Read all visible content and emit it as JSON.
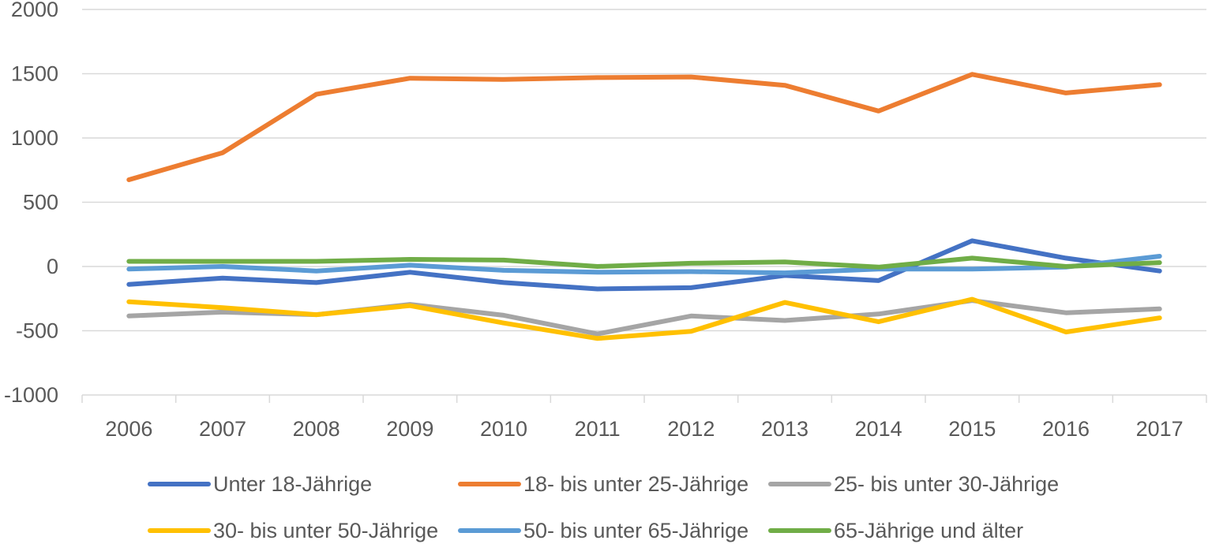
{
  "chart_data": {
    "type": "line",
    "title": "",
    "xlabel": "",
    "ylabel": "",
    "x": [
      "2006",
      "2007",
      "2008",
      "2009",
      "2010",
      "2011",
      "2012",
      "2013",
      "2014",
      "2015",
      "2016",
      "2017"
    ],
    "ylim": [
      -1000,
      2000
    ],
    "yticks": [
      "2000",
      "1500",
      "1000",
      "500",
      "0",
      "-500",
      "-1000"
    ],
    "grid": "horizontal",
    "legend_position": "bottom",
    "series": [
      {
        "name": "Unter 18-Jährige",
        "color": "#4472C4",
        "values": [
          -140,
          -90,
          -125,
          -45,
          -125,
          -175,
          -165,
          -70,
          -110,
          200,
          65,
          -35
        ]
      },
      {
        "name": "18- bis unter 25-Jährige",
        "color": "#ED7D31",
        "values": [
          675,
          885,
          1340,
          1465,
          1455,
          1470,
          1475,
          1410,
          1210,
          1495,
          1350,
          1415
        ]
      },
      {
        "name": "25- bis unter 30-Jährige",
        "color": "#A5A5A5",
        "values": [
          -385,
          -355,
          -375,
          -295,
          -380,
          -525,
          -385,
          -420,
          -370,
          -265,
          -360,
          -330
        ]
      },
      {
        "name": "30- bis unter 50-Jährige",
        "color": "#FFC000",
        "values": [
          -275,
          -320,
          -375,
          -305,
          -440,
          -560,
          -505,
          -280,
          -430,
          -255,
          -510,
          -400
        ]
      },
      {
        "name": "50- bis unter 65-Jährige",
        "color": "#5B9BD5",
        "values": [
          -20,
          0,
          -35,
          10,
          -30,
          -45,
          -40,
          -50,
          -20,
          -20,
          -5,
          80
        ]
      },
      {
        "name": "65-Jährige und älter",
        "color": "#70AD47",
        "values": [
          40,
          40,
          40,
          55,
          50,
          0,
          25,
          35,
          -5,
          65,
          0,
          30
        ]
      }
    ]
  }
}
